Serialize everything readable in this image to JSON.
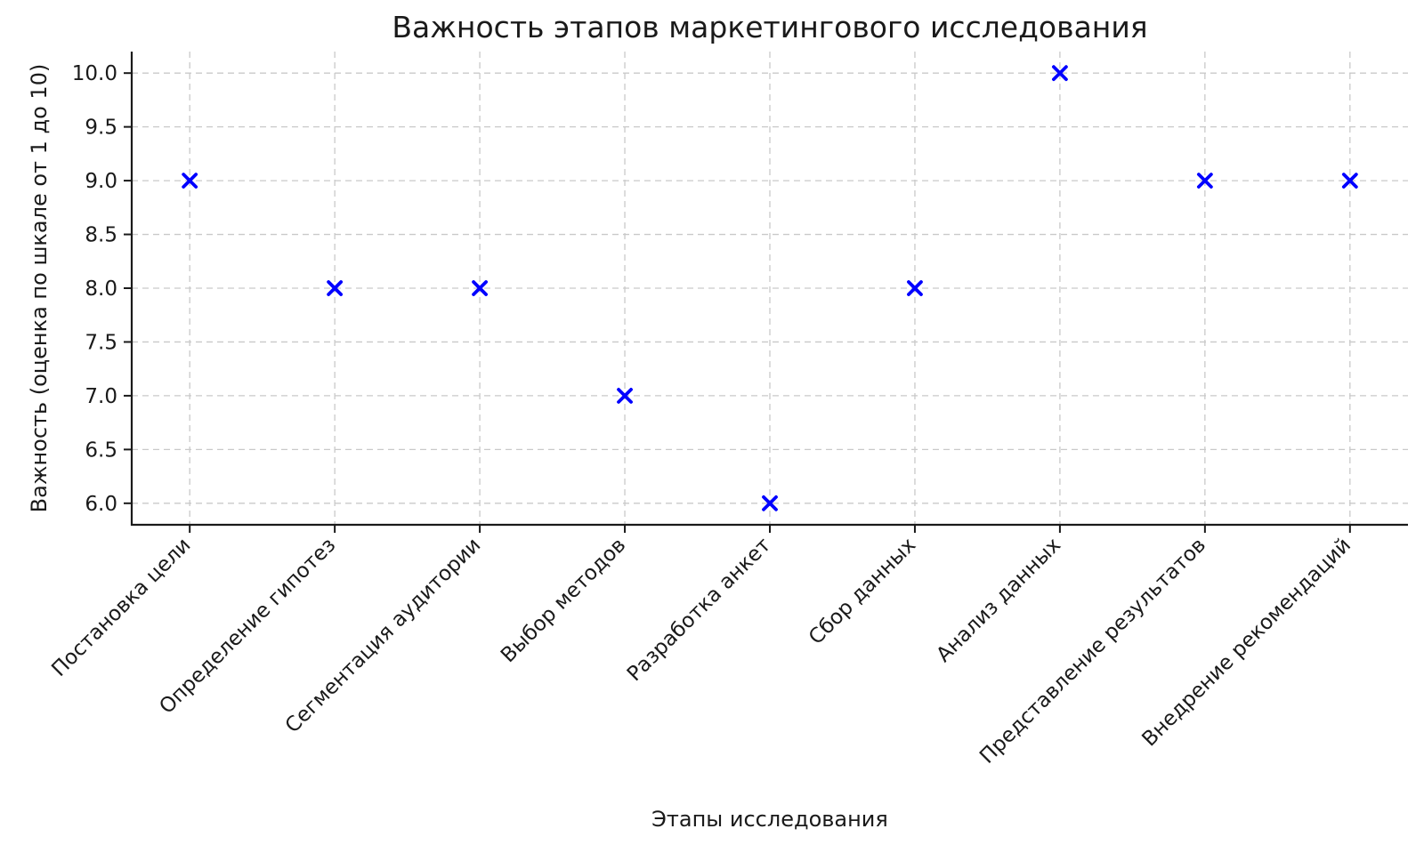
{
  "chart_data": {
    "type": "scatter",
    "title": "Важность этапов маркетингового исследования",
    "xlabel": "Этапы исследования",
    "ylabel": "Важность (оценка по шкале от 1 до 10)",
    "categories": [
      "Постановка цели",
      "Определение гипотез",
      "Сегментация аудитории",
      "Выбор методов",
      "Разработка анкет",
      "Сбор данных",
      "Анализ данных",
      "Представление результатов",
      "Внедрение рекомендаций"
    ],
    "values": [
      9,
      8,
      8,
      7,
      6,
      8,
      10,
      9,
      9
    ],
    "y_ticks": [
      6.0,
      6.5,
      7.0,
      7.5,
      8.0,
      8.5,
      9.0,
      9.5,
      10.0
    ],
    "y_tick_labels": [
      "6.0",
      "6.5",
      "7.0",
      "7.5",
      "8.0",
      "8.5",
      "9.0",
      "9.5",
      "10.0"
    ],
    "ylim": [
      5.8,
      10.2
    ],
    "marker": "x",
    "marker_color": "#0000FF",
    "grid": true,
    "grid_line_style": "dashed",
    "grid_color": "#C9C9C9",
    "axis_color": "#1A1A1A",
    "background_color": "#FFFFFF",
    "legend": false,
    "x_tick_label_rotation_deg": 45
  }
}
